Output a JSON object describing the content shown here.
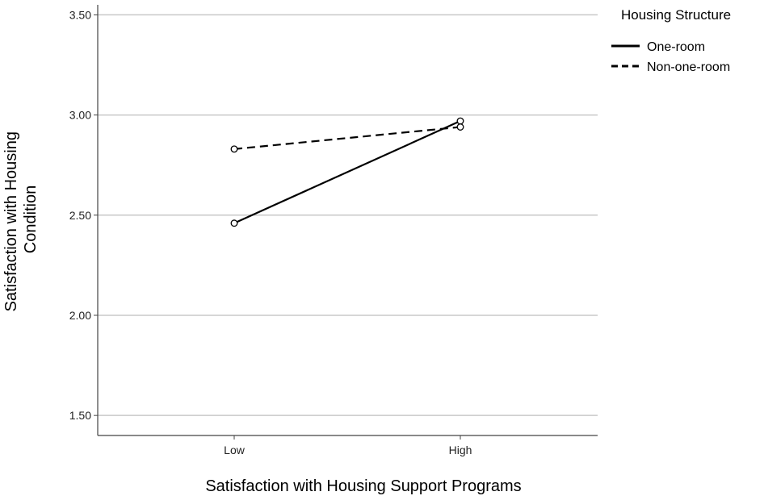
{
  "chart_data": {
    "type": "line",
    "title": "",
    "xlabel": "Satisfaction with Housing Support Programs",
    "ylabel": [
      "Satisfaction with Housing",
      "Condition"
    ],
    "categories": [
      "Low",
      "High"
    ],
    "ylim": [
      1.4,
      3.55
    ],
    "yticks": [
      "1.50",
      "2.00",
      "2.50",
      "3.00",
      "3.50"
    ],
    "grid": true,
    "legend": {
      "title": "Housing Structure",
      "placement": "top-right"
    },
    "series": [
      {
        "name": "One-room",
        "values": [
          2.46,
          2.97
        ],
        "line_style": "solid",
        "color": "#000000"
      },
      {
        "name": "Non-one-room",
        "values": [
          2.83,
          2.94
        ],
        "line_style": "dashed",
        "color": "#000000"
      }
    ]
  }
}
